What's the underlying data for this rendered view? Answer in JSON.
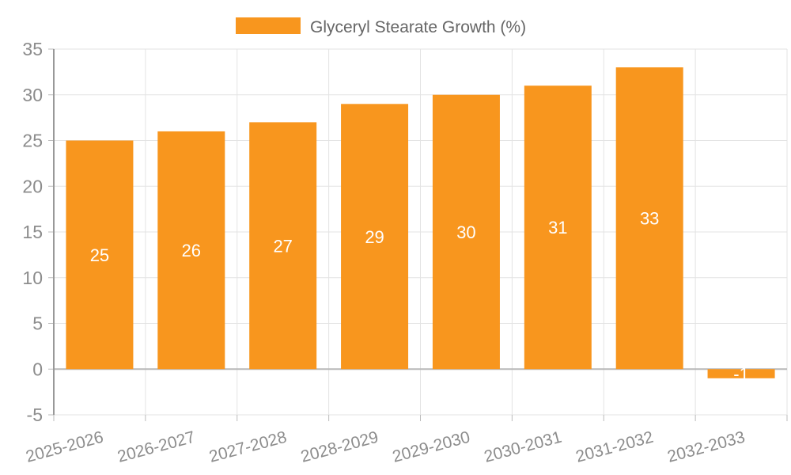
{
  "chart_data": {
    "type": "bar",
    "title": "",
    "xlabel": "",
    "ylabel": "",
    "legend_label": "Glyceryl Stearate Growth (%)",
    "legend_position": "top-center",
    "categories": [
      "2025-2026",
      "2026-2027",
      "2027-2028",
      "2028-2029",
      "2029-2030",
      "2030-2031",
      "2031-2032",
      "2032-2033"
    ],
    "values": [
      25,
      26,
      27,
      29,
      30,
      31,
      33,
      -1
    ],
    "bar_value_labels": [
      "25",
      "26",
      "27",
      "29",
      "30",
      "31",
      "33",
      "-1"
    ],
    "ylim": [
      -5,
      35
    ],
    "yticks": [
      35,
      30,
      25,
      20,
      15,
      10,
      5,
      0,
      -5
    ],
    "grid": true,
    "colors": {
      "bar_fill": "#F8961E",
      "bar_value_text": "#FFFFFF",
      "axis_tick_text": "#8C8C8C",
      "legend_text": "#666666",
      "gridline": "#E3E3E3",
      "zero_line": "#B8B8B8",
      "axis_line": "#999999",
      "tick_mark": "#BBBBBB",
      "background": "#FFFFFF"
    }
  }
}
